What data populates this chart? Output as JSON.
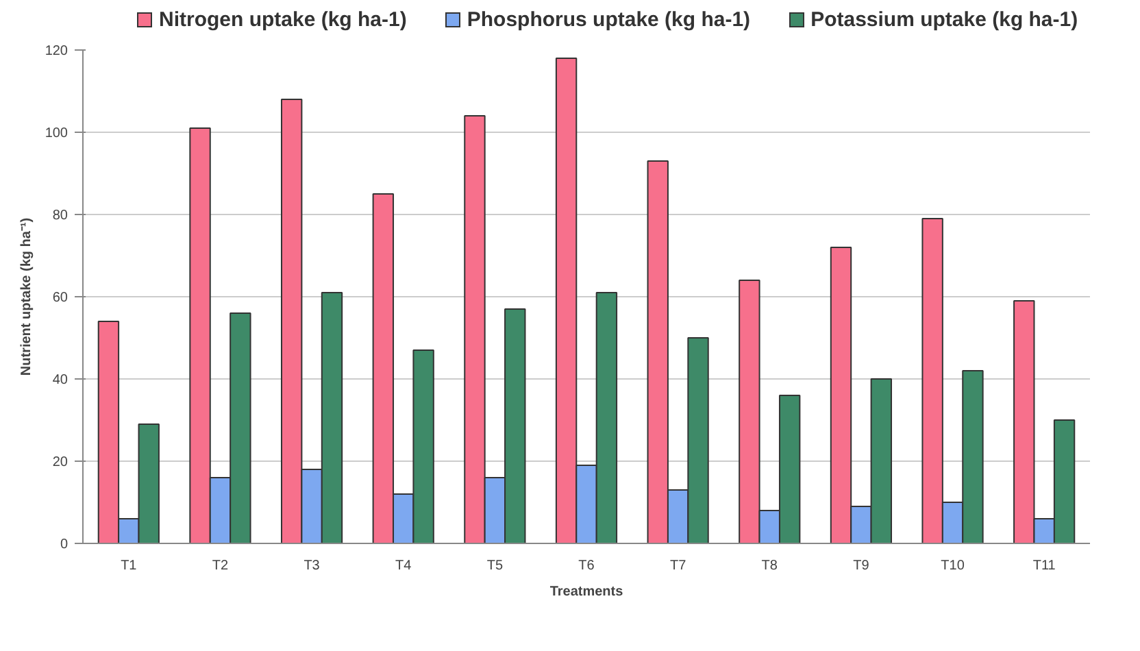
{
  "chart_data": {
    "type": "bar",
    "xlabel": "Treatments",
    "ylabel": "Nutrient uptake (kg ha⁻¹)",
    "categories": [
      "T1",
      "T2",
      "T3",
      "T4",
      "T5",
      "T6",
      "T7",
      "T8",
      "T9",
      "T10",
      "T11"
    ],
    "series": [
      {
        "name": "Nitrogen uptake (kg ha-1)",
        "color": "#f7708c",
        "values": [
          54,
          101,
          108,
          85,
          104,
          118,
          93,
          64,
          72,
          79,
          59
        ]
      },
      {
        "name": "Phosphorus uptake (kg ha-1)",
        "color": "#7da8f0",
        "values": [
          6,
          16,
          18,
          12,
          16,
          19,
          13,
          8,
          9,
          10,
          6
        ]
      },
      {
        "name": "Potassium uptake (kg ha-1)",
        "color": "#3e8a68",
        "values": [
          29,
          56,
          61,
          47,
          57,
          61,
          50,
          36,
          40,
          42,
          30
        ]
      }
    ],
    "ylim": [
      0,
      120
    ],
    "yticks": [
      0,
      20,
      40,
      60,
      80,
      100,
      120
    ],
    "grid": "y",
    "legend": "top"
  }
}
